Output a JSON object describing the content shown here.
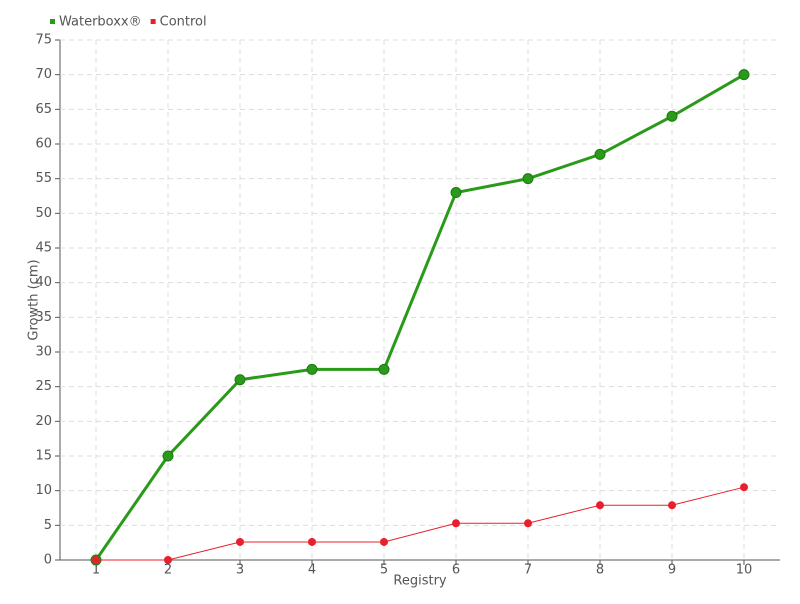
{
  "chart_data": {
    "type": "line",
    "x": [
      1,
      2,
      3,
      4,
      5,
      6,
      7,
      8,
      9,
      10
    ],
    "xlim": [
      0.5,
      10.5
    ],
    "xticks": [
      1,
      2,
      3,
      4,
      5,
      6,
      7,
      8,
      9,
      10
    ],
    "ylim": [
      0,
      75
    ],
    "yticks": [
      0,
      5,
      10,
      15,
      20,
      25,
      30,
      35,
      40,
      45,
      50,
      55,
      60,
      65,
      70,
      75
    ],
    "x_label": "Registry",
    "y_label": "Growth (cm)",
    "grid": true,
    "legend": "top-left",
    "series": [
      {
        "name": "Waterboxx®",
        "color": "#2a9a1a",
        "values": [
          0,
          15,
          26,
          27.5,
          27.5,
          53,
          55,
          58.5,
          64,
          70
        ]
      },
      {
        "name": "Control",
        "color": "#e8202e",
        "values": [
          0,
          0,
          2.6,
          2.6,
          2.6,
          5.3,
          5.3,
          7.9,
          7.9,
          10.5
        ]
      }
    ]
  }
}
